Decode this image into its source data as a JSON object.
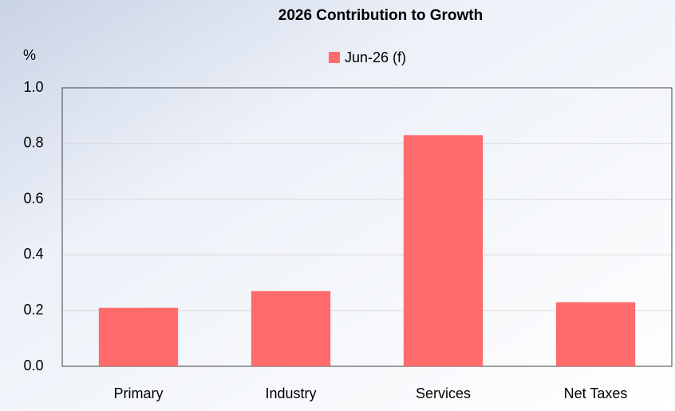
{
  "chart_data": {
    "type": "bar",
    "title": "2026 Contribution to Growth",
    "y_label": "%",
    "categories": [
      "Primary",
      "Industry",
      "Services",
      "Net Taxes"
    ],
    "series": [
      {
        "name": "Jun-26 (f)",
        "color": "#ff6b6b",
        "values": [
          0.21,
          0.27,
          0.83,
          0.23
        ]
      }
    ],
    "ylim": [
      0,
      1
    ],
    "yticks": [
      {
        "value": 0,
        "label": "0.0"
      },
      0.2,
      0.4,
      0.6,
      0.8,
      {
        "value": 1,
        "label": "1.0"
      }
    ],
    "grid": true
  }
}
